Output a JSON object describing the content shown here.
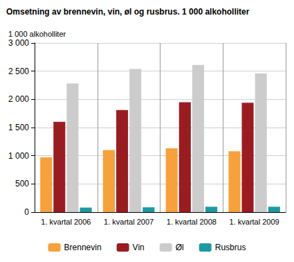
{
  "chart_data": {
    "type": "bar",
    "title": "Omsetning av brennevin, vin, øl og rusbrus. 1 000 alkoholliter",
    "y_label": "1 000 alkoholliter",
    "categories": [
      "1. kvartal 2006",
      "1. kvartal 2007",
      "1. kvartal 2008",
      "1. kvartal 2009"
    ],
    "series": [
      {
        "name": "Brennevin",
        "color": "#f7a13a",
        "values": [
          970,
          1100,
          1130,
          1080
        ]
      },
      {
        "name": "Vin",
        "color": "#9b1c20",
        "values": [
          1600,
          1810,
          1950,
          1940
        ]
      },
      {
        "name": "Øl",
        "color": "#cccccc",
        "values": [
          2280,
          2540,
          2610,
          2460
        ]
      },
      {
        "name": "Rusbrus",
        "color": "#1c9aa1",
        "values": [
          80,
          85,
          95,
          95
        ]
      }
    ],
    "ylim": [
      0,
      3000
    ],
    "yticks": [
      0,
      500,
      {
        "value": 1000,
        "label": "1 000"
      },
      {
        "value": 1500,
        "label": "1 500"
      },
      {
        "value": 2000,
        "label": "2 000"
      },
      {
        "value": 2500,
        "label": "2 500"
      },
      {
        "value": 3000,
        "label": "3 000"
      }
    ],
    "grid": true,
    "legend": "bottom"
  }
}
